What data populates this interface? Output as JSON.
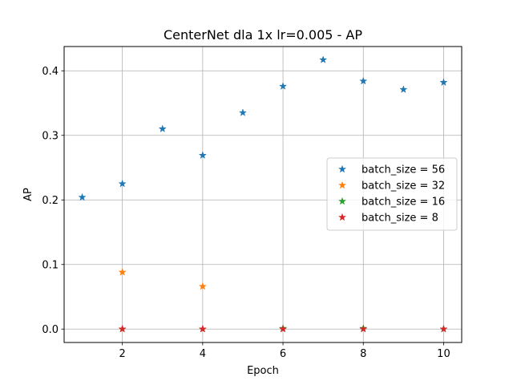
{
  "chart_data": {
    "type": "scatter",
    "title": "CenterNet dla 1x lr=0.005 - AP",
    "xlabel": "Epoch",
    "ylabel": "AP",
    "xlim": [
      0.55,
      10.45
    ],
    "ylim": [
      -0.0208,
      0.4376
    ],
    "xticks": [
      2,
      4,
      6,
      8,
      10
    ],
    "yticks": [
      0.0,
      0.1,
      0.2,
      0.3,
      0.4
    ],
    "ytick_labels": [
      "0.0",
      "0.1",
      "0.2",
      "0.3",
      "0.4"
    ],
    "grid": true,
    "legend_position": "center-right",
    "marker": "star",
    "series": [
      {
        "name": "batch_size = 56",
        "color": "#1f77b4",
        "x": [
          1,
          2,
          3,
          4,
          5,
          6,
          7,
          8,
          9,
          10
        ],
        "y": [
          0.204,
          0.225,
          0.31,
          0.269,
          0.335,
          0.376,
          0.417,
          0.384,
          0.371,
          0.382
        ]
      },
      {
        "name": "batch_size = 32",
        "color": "#ff7f0e",
        "x": [
          2,
          4
        ],
        "y": [
          0.088,
          0.066
        ]
      },
      {
        "name": "batch_size = 16",
        "color": "#2ca02c",
        "x": [
          2,
          4,
          6,
          8,
          10
        ],
        "y": [
          0.0,
          0.0,
          0.001,
          0.001,
          0.0
        ]
      },
      {
        "name": "batch_size = 8",
        "color": "#d62728",
        "x": [
          2,
          4,
          6,
          8,
          10
        ],
        "y": [
          0.0,
          0.0,
          0.0,
          0.0,
          0.0
        ]
      }
    ]
  }
}
